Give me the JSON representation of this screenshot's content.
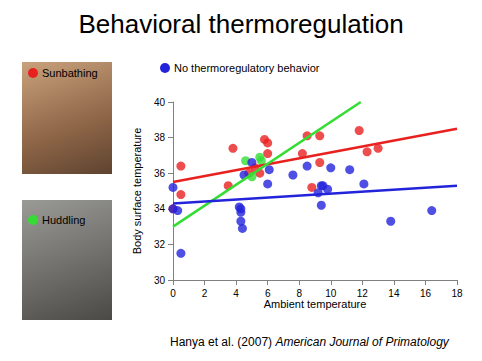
{
  "chart_data": {
    "type": "scatter",
    "title": "Behavioral thermoregulation",
    "x_label": "Ambient temperature",
    "y_label": "Body surface temperature",
    "source": {
      "authors": "Hanya et al. (2007)",
      "journal": "American Journal of Primatology"
    },
    "xlim": [
      0,
      18
    ],
    "xticks": [
      0,
      2,
      4,
      6,
      8,
      10,
      12,
      14,
      16,
      18
    ],
    "ylim": [
      30,
      40
    ],
    "yticks": [
      30,
      32,
      34,
      36,
      38,
      40
    ],
    "grid": false,
    "series": [
      {
        "name": "Sunbathing",
        "color": "#e8211f",
        "marker": "circle",
        "x": [
          0.5,
          0.5,
          0,
          3.8,
          4.8,
          5.2,
          5.8,
          6.0,
          6.0,
          5.5,
          8.5,
          9.3,
          8.8,
          8.2,
          9.3,
          11.8,
          12.3,
          13.0,
          3.5
        ],
        "values": [
          36.4,
          34.8,
          34.0,
          37.4,
          36.0,
          36.3,
          37.9,
          37.7,
          37.1,
          36.0,
          38.1,
          38.1,
          35.2,
          37.1,
          36.6,
          38.4,
          37.2,
          37.4,
          35.3
        ],
        "fit": {
          "x": [
            0,
            18
          ],
          "values": [
            35.5,
            38.5
          ]
        }
      },
      {
        "name": "Huddling",
        "color": "#33dd33",
        "marker": "circle",
        "x": [
          5.0,
          5.5,
          5.6,
          4.6
        ],
        "values": [
          35.8,
          36.9,
          36.7,
          36.7
        ],
        "fit": {
          "x": [
            0,
            11.9
          ],
          "values": [
            33.0,
            40.0
          ]
        }
      },
      {
        "name": "No thermoregulatory behavior",
        "color": "#2323dc",
        "marker": "circle",
        "x": [
          0,
          0,
          0.3,
          0.5,
          4.2,
          4.3,
          4.3,
          4.4,
          4.3,
          4.5,
          5.0,
          6.0,
          6.1,
          7.6,
          8.5,
          9.4,
          9.5,
          9.8,
          9.4,
          10.0,
          11.2,
          12.1,
          13.8,
          16.4,
          9.2
        ],
        "values": [
          35.2,
          34.0,
          33.9,
          31.5,
          34.1,
          33.8,
          33.3,
          32.9,
          34.0,
          35.9,
          36.6,
          35.4,
          36.2,
          35.9,
          36.4,
          34.2,
          35.3,
          35.1,
          35.3,
          36.3,
          36.2,
          35.4,
          33.3,
          33.9,
          34.9
        ],
        "fit": {
          "x": [
            0,
            18
          ],
          "values": [
            34.3,
            35.3
          ]
        }
      }
    ]
  }
}
